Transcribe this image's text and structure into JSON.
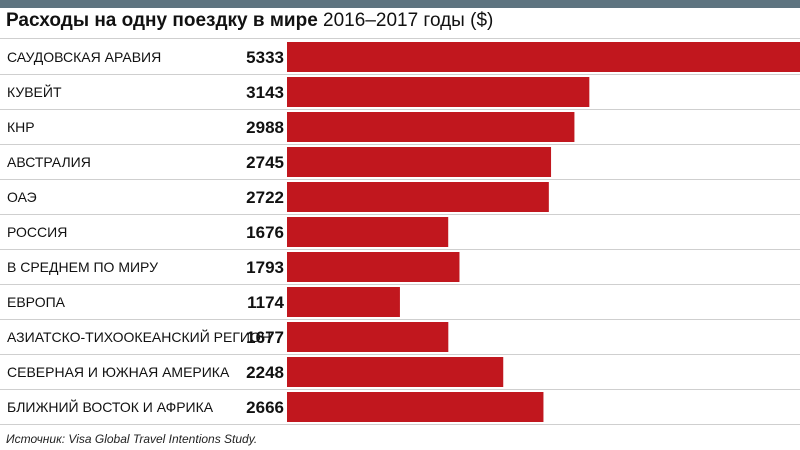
{
  "title": {
    "bold": "Расходы на одну поездку в мире",
    "rest": "2016–2017 годы ($)"
  },
  "source": "Источник: Visa Global Travel Intentions Study.",
  "colors": {
    "bar": "#c1171e",
    "band": "#5e7480"
  },
  "chart_data": {
    "type": "bar",
    "orientation": "horizontal",
    "title": "Расходы на одну поездку в мире 2016–2017 годы ($)",
    "categories": [
      "САУДОВСКАЯ АРАВИЯ",
      "КУВЕЙТ",
      "КНР",
      "АВСТРАЛИЯ",
      "ОАЭ",
      "РОССИЯ",
      "В СРЕДНЕМ ПО МИРУ",
      "ЕВРОПА",
      "АЗИАТСКО-ТИХООКЕАНСКИЙ РЕГИОН",
      "СЕВЕРНАЯ И ЮЖНАЯ АМЕРИКА",
      "БЛИЖНИЙ ВОСТОК И АФРИКА"
    ],
    "values": [
      5333,
      3143,
      2988,
      2745,
      2722,
      1676,
      1793,
      1174,
      1677,
      2248,
      2666
    ],
    "value_labels": [
      "5333",
      "3143",
      "2988",
      "2745",
      "2722",
      "1676",
      "1793",
      "1174",
      "1677",
      "2248",
      "2666"
    ],
    "xlim": [
      0,
      5333
    ],
    "grid": false,
    "legend": "none"
  }
}
